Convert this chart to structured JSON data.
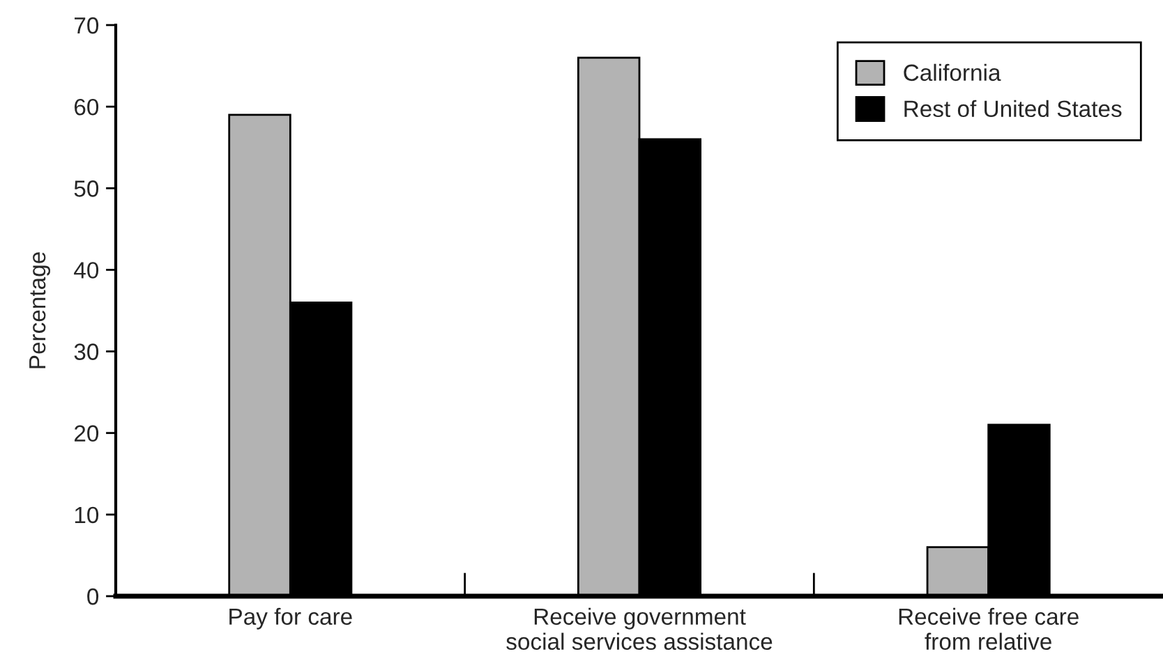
{
  "chart_data": {
    "type": "bar",
    "ylabel": "Percentage",
    "categories": [
      "Pay for care",
      "Receive government\nsocial services assistance",
      "Receive free care\nfrom relative"
    ],
    "series": [
      {
        "name": "California",
        "color": "#b3b3b3",
        "values": [
          59,
          66,
          6
        ]
      },
      {
        "name": "Rest of United States",
        "color": "#000000",
        "values": [
          36,
          56,
          21
        ]
      }
    ],
    "ylim": [
      0,
      70
    ],
    "yticks": [
      0,
      10,
      20,
      30,
      40,
      50,
      60,
      70
    ],
    "grid": false,
    "legend": "top right"
  }
}
